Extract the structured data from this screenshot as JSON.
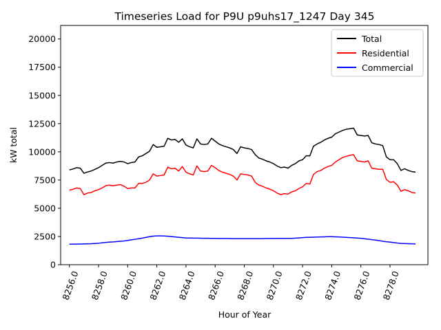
{
  "chart_data": {
    "type": "line",
    "title": "Timeseries Load for P9U p9uhs17_1247  Day 345",
    "xlabel": "Hour of Year",
    "ylabel": "kW total",
    "xlim": [
      8255.4,
      8280.6
    ],
    "ylim": [
      0,
      21200
    ],
    "xticks": [
      8256,
      8258,
      8260,
      8262,
      8264,
      8266,
      8268,
      8270,
      8272,
      8274,
      8276,
      8278
    ],
    "xtick_labels": [
      "8256.0",
      "8258.0",
      "8260.0",
      "8262.0",
      "8264.0",
      "8266.0",
      "8268.0",
      "8270.0",
      "8272.0",
      "8274.0",
      "8276.0",
      "8278.0"
    ],
    "yticks": [
      0,
      2500,
      5000,
      7500,
      10000,
      12500,
      15000,
      17500,
      20000
    ],
    "ytick_labels": [
      "0",
      "2500",
      "5000",
      "7500",
      "10000",
      "12500",
      "15000",
      "17500",
      "20000"
    ],
    "legend_position": "top-right",
    "grid": false,
    "x": [
      8256.0,
      8256.25,
      8256.5,
      8256.75,
      8257.0,
      8257.25,
      8257.5,
      8257.75,
      8258.0,
      8258.25,
      8258.5,
      8258.75,
      8259.0,
      8259.25,
      8259.5,
      8259.75,
      8260.0,
      8260.25,
      8260.5,
      8260.75,
      8261.0,
      8261.25,
      8261.5,
      8261.75,
      8262.0,
      8262.25,
      8262.5,
      8262.75,
      8263.0,
      8263.25,
      8263.5,
      8263.75,
      8264.0,
      8264.25,
      8264.5,
      8264.75,
      8265.0,
      8265.25,
      8265.5,
      8265.75,
      8266.0,
      8266.25,
      8266.5,
      8266.75,
      8267.0,
      8267.25,
      8267.5,
      8267.75,
      8268.0,
      8268.25,
      8268.5,
      8268.75,
      8269.0,
      8269.25,
      8269.5,
      8269.75,
      8270.0,
      8270.25,
      8270.5,
      8270.75,
      8271.0,
      8271.25,
      8271.5,
      8271.75,
      8272.0,
      8272.25,
      8272.5,
      8272.75,
      8273.0,
      8273.25,
      8273.5,
      8273.75,
      8274.0,
      8274.25,
      8274.5,
      8274.75,
      8275.0,
      8275.25,
      8275.5,
      8275.75,
      8276.0,
      8276.25,
      8276.5,
      8276.75,
      8277.0,
      8277.25,
      8277.5,
      8277.75,
      8278.0,
      8278.25,
      8278.5,
      8278.75,
      8279.0,
      8279.25,
      8279.5,
      8279.75
    ],
    "series": [
      {
        "name": "Total",
        "color": "#000000",
        "values": [
          8400,
          8480,
          8600,
          8550,
          8100,
          8220,
          8300,
          8450,
          8600,
          8800,
          9000,
          9050,
          9000,
          9100,
          9150,
          9100,
          8950,
          9050,
          9100,
          9550,
          9650,
          9850,
          10050,
          10650,
          10400,
          10450,
          10500,
          11200,
          11050,
          11100,
          10850,
          11150,
          10600,
          10450,
          10350,
          11150,
          10700,
          10650,
          10700,
          11200,
          10950,
          10700,
          10550,
          10450,
          10350,
          10200,
          9850,
          10450,
          10350,
          10300,
          10200,
          9750,
          9450,
          9350,
          9200,
          9100,
          8950,
          8750,
          8600,
          8650,
          8550,
          8800,
          8950,
          9200,
          9300,
          9650,
          9650,
          10500,
          10700,
          10850,
          11050,
          11200,
          11300,
          11600,
          11750,
          11900,
          12000,
          12050,
          12100,
          11500,
          11450,
          11400,
          11450,
          10800,
          10700,
          10650,
          10550,
          9550,
          9300,
          9300,
          8950,
          8350,
          8500,
          8350,
          8250,
          8200
        ]
      },
      {
        "name": "Residential",
        "color": "#ff0000",
        "values": [
          6600,
          6680,
          6800,
          6750,
          6200,
          6350,
          6400,
          6550,
          6650,
          6800,
          7000,
          7050,
          7000,
          7050,
          7100,
          6950,
          6750,
          6800,
          6800,
          7200,
          7200,
          7300,
          7500,
          8050,
          7850,
          7900,
          7950,
          8650,
          8500,
          8550,
          8300,
          8700,
          8200,
          8050,
          7950,
          8750,
          8300,
          8250,
          8300,
          8800,
          8600,
          8350,
          8200,
          8100,
          8000,
          7850,
          7500,
          8050,
          8000,
          7950,
          7850,
          7300,
          7050,
          6950,
          6800,
          6700,
          6550,
          6350,
          6200,
          6300,
          6250,
          6450,
          6550,
          6750,
          6900,
          7200,
          7150,
          8000,
          8250,
          8350,
          8550,
          8700,
          8800,
          9100,
          9300,
          9500,
          9600,
          9700,
          9750,
          9200,
          9150,
          9100,
          9200,
          8550,
          8500,
          8450,
          8450,
          7550,
          7300,
          7350,
          7050,
          6500,
          6650,
          6550,
          6400,
          6350
        ]
      },
      {
        "name": "Commercial",
        "color": "#0000ff",
        "values": [
          1820,
          1820,
          1830,
          1830,
          1840,
          1850,
          1860,
          1880,
          1900,
          1940,
          1970,
          2000,
          2020,
          2050,
          2080,
          2100,
          2150,
          2200,
          2250,
          2300,
          2350,
          2420,
          2480,
          2530,
          2550,
          2550,
          2540,
          2520,
          2490,
          2460,
          2430,
          2400,
          2370,
          2360,
          2350,
          2350,
          2345,
          2340,
          2335,
          2330,
          2330,
          2325,
          2320,
          2320,
          2315,
          2310,
          2310,
          2310,
          2305,
          2305,
          2305,
          2305,
          2310,
          2310,
          2320,
          2320,
          2325,
          2330,
          2330,
          2330,
          2330,
          2330,
          2350,
          2370,
          2400,
          2420,
          2430,
          2440,
          2450,
          2460,
          2470,
          2480,
          2480,
          2470,
          2460,
          2440,
          2420,
          2400,
          2380,
          2360,
          2340,
          2300,
          2260,
          2220,
          2180,
          2130,
          2080,
          2030,
          2000,
          1960,
          1920,
          1890,
          1870,
          1860,
          1850,
          1840
        ]
      }
    ]
  }
}
